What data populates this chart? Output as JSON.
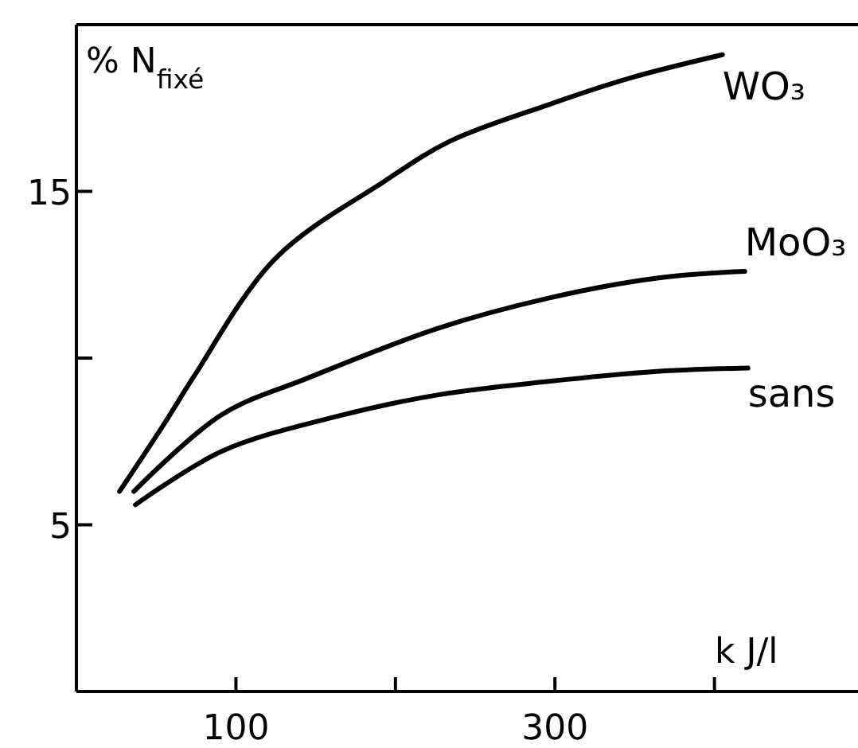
{
  "chart_data": {
    "type": "line",
    "ylabel": "% N$_{fixé}$",
    "xlabel": "k J/l",
    "xlim": [
      0,
      490
    ],
    "ylim": [
      0,
      20
    ],
    "xticks": [
      {
        "value": 100,
        "label": "100"
      },
      {
        "value": 200,
        "label": null
      },
      {
        "value": 300,
        "label": "300"
      },
      {
        "value": 400,
        "label": null
      }
    ],
    "yticks": [
      {
        "value": 5,
        "label": "5"
      },
      {
        "value": 10,
        "label": null
      },
      {
        "value": 15,
        "label": "15"
      }
    ],
    "grid": false,
    "marker": "none",
    "line_style": "solid",
    "series": [
      {
        "name": "WO₃",
        "color": "#000000",
        "x": [
          27,
          56,
          73,
          125,
          193,
          234,
          296,
          347,
          405
        ],
        "values": [
          6.0,
          8.1,
          9.4,
          13.0,
          15.3,
          16.5,
          17.6,
          18.4,
          19.1
        ]
      },
      {
        "name": "MoO₃",
        "color": "#000000",
        "x": [
          36,
          91,
          145,
          227,
          296,
          364,
          419
        ],
        "values": [
          6.0,
          8.3,
          9.4,
          10.9,
          11.8,
          12.4,
          12.6
        ]
      },
      {
        "name": "sans",
        "color": "#000000",
        "x": [
          37,
          91,
          159,
          227,
          296,
          364,
          421
        ],
        "values": [
          5.6,
          7.2,
          8.2,
          8.9,
          9.3,
          9.6,
          9.7
        ]
      }
    ]
  }
}
